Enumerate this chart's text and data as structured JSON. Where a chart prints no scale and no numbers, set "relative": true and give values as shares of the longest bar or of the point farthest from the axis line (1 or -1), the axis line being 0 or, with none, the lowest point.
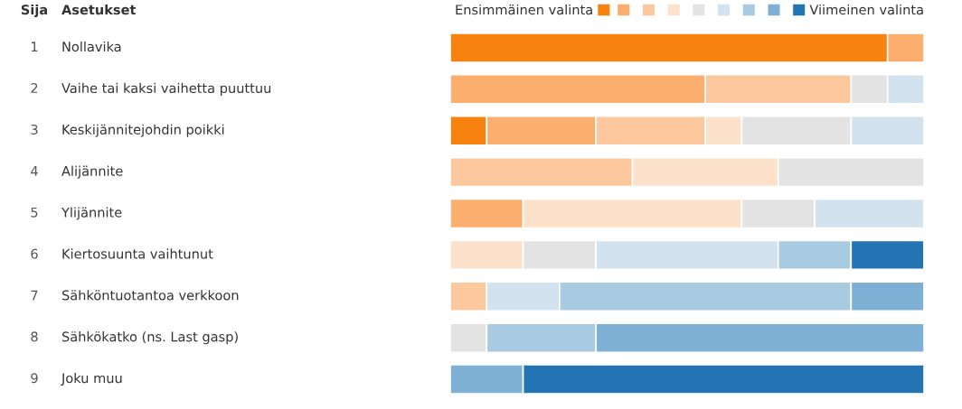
{
  "chart_data": {
    "type": "bar",
    "orientation": "horizontal",
    "stacked": true,
    "relative": true,
    "legend": "top right",
    "ylabel": "Asetukset",
    "annotations": [
      "Sija",
      "1",
      "2",
      "3",
      "4",
      "5",
      "6",
      "7",
      "8",
      "9"
    ],
    "categories": [
      "Nollavika",
      "Vaihe tai kaksi vaihetta puuttuu",
      "Keskijännitejohdin poikki",
      "Alijännite",
      "Ylijännite",
      "Kiertosuunta vaihtunut",
      "Sähköntuotantoa verkkoon",
      "Sähkökatko (ns. Last gasp)",
      "Joku muu"
    ],
    "series": [
      {
        "name": "Ensimmäinen valinta",
        "color": "#f7820f",
        "values": [
          0.9231,
          0,
          0.0769,
          0,
          0,
          0,
          0,
          0,
          0
        ]
      },
      {
        "color": "#fbae6e",
        "values": [
          0.0769,
          0.5385,
          0.2308,
          0,
          0.1538,
          0,
          0,
          0,
          0
        ]
      },
      {
        "color": "#fdc89e",
        "values": [
          0,
          0.3077,
          0.2308,
          0.3846,
          0,
          0,
          0.0769,
          0,
          0
        ]
      },
      {
        "color": "#fde2cb",
        "values": [
          0,
          0,
          0.0769,
          0.3077,
          0.4615,
          0.1538,
          0,
          0,
          0
        ]
      },
      {
        "color": "#e3e3e3",
        "values": [
          0,
          0.0769,
          0.2308,
          0.3077,
          0.1538,
          0.1538,
          0,
          0.0769,
          0
        ]
      },
      {
        "color": "#d2e2ef",
        "values": [
          0,
          0.0769,
          0.1538,
          0,
          0.2308,
          0.3846,
          0.1538,
          0,
          0
        ]
      },
      {
        "color": "#a8cbe2",
        "values": [
          0,
          0,
          0,
          0,
          0,
          0.1538,
          0.6154,
          0.2308,
          0
        ]
      },
      {
        "color": "#7eb0d6",
        "values": [
          0,
          0,
          0,
          0,
          0,
          0,
          0.1538,
          0.6923,
          0.1538
        ]
      },
      {
        "name": "Viimeinen valinta",
        "color": "#2374b3",
        "values": [
          0,
          0,
          0,
          0,
          0,
          0.1538,
          0,
          0,
          0.8462
        ]
      }
    ]
  }
}
